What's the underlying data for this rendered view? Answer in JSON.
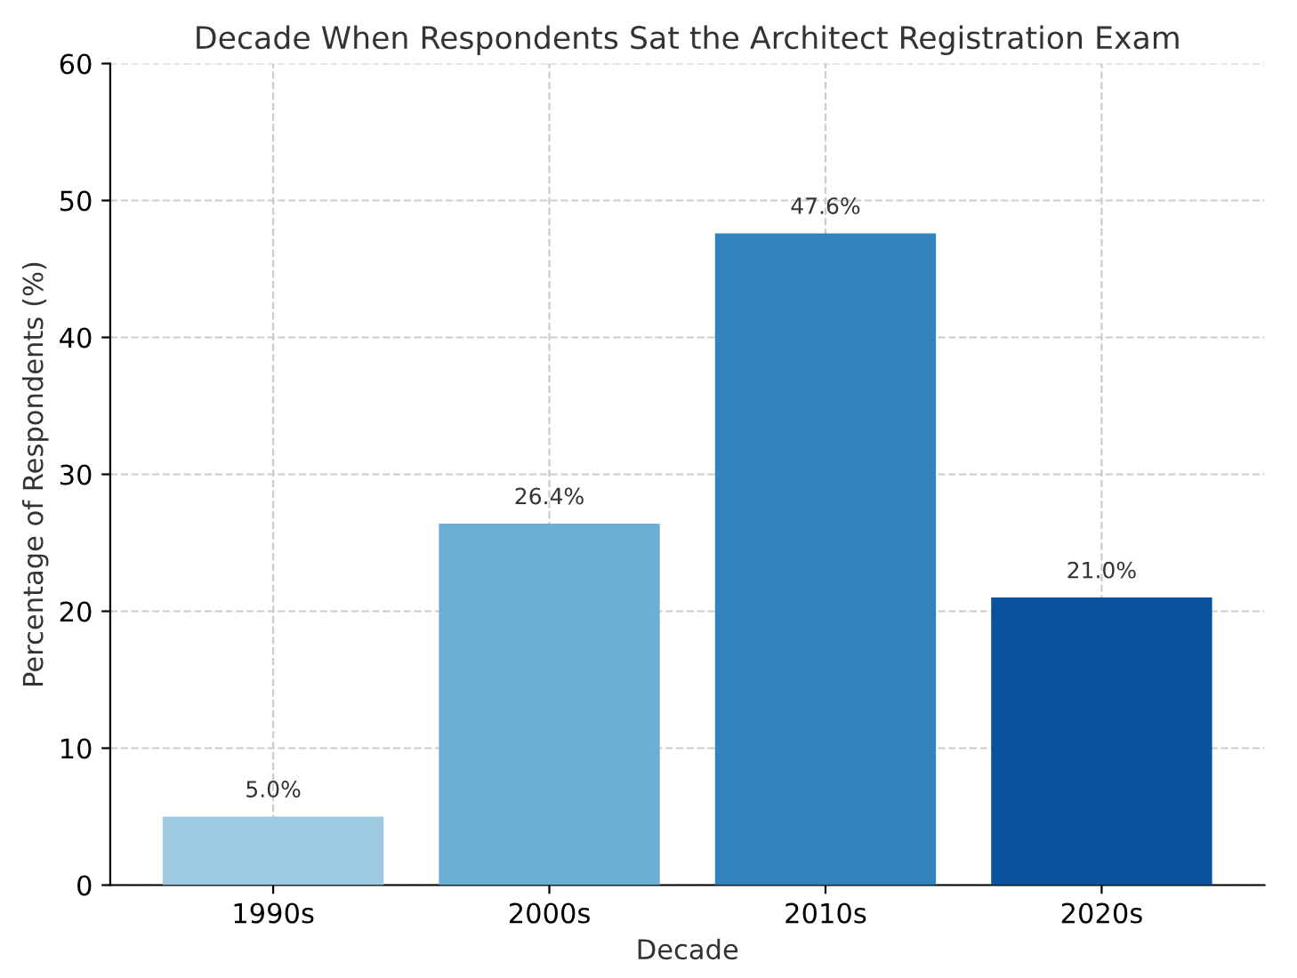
{
  "chart_data": {
    "type": "bar",
    "title": "Decade When Respondents Sat the Architect Registration Exam",
    "xlabel": "Decade",
    "ylabel": "Percentage of Respondents (%)",
    "categories": [
      "1990s",
      "2000s",
      "2010s",
      "2020s"
    ],
    "values": [
      5.0,
      26.4,
      47.6,
      21.0
    ],
    "colors": [
      "#9ecae1",
      "#6baed6",
      "#3182bd",
      "#08519c"
    ],
    "value_labels": [
      "5.0%",
      "26.4%",
      "47.6%",
      "21.0%"
    ],
    "ylim": [
      0,
      60
    ],
    "yticks": [
      0,
      10,
      20,
      30,
      40,
      50,
      60
    ],
    "grid": true
  }
}
